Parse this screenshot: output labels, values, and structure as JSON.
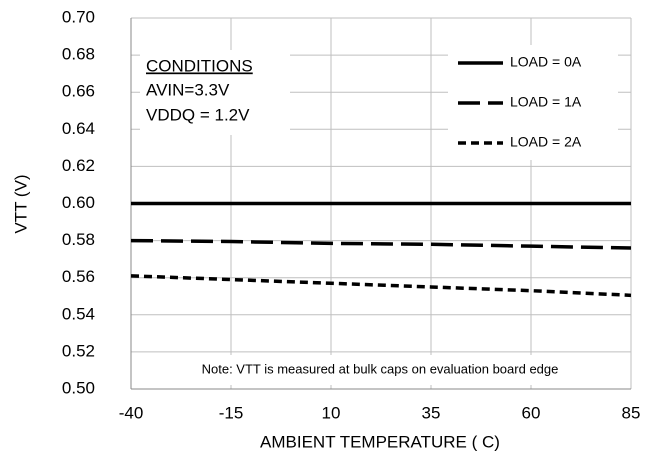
{
  "chart_data": {
    "type": "line",
    "xlabel": "AMBIENT TEMPERATURE ( C)",
    "ylabel": "VTT (V)",
    "x": [
      -40,
      -15,
      10,
      35,
      60,
      85
    ],
    "series": [
      {
        "name": "LOAD = 0A",
        "color": "#000000",
        "line_style": "solid",
        "values": [
          0.6,
          0.6,
          0.6,
          0.6,
          0.6,
          0.6
        ]
      },
      {
        "name": "LOAD = 1A",
        "color": "#000000",
        "line_style": "dashed",
        "values": [
          0.58,
          0.5795,
          0.5785,
          0.578,
          0.577,
          0.576
        ]
      },
      {
        "name": "LOAD = 2A",
        "color": "#000000",
        "line_style": "dotted",
        "values": [
          0.561,
          0.559,
          0.557,
          0.555,
          0.553,
          0.5505
        ]
      }
    ],
    "xlim": [
      -40,
      85
    ],
    "xticks": [
      -40,
      -15,
      10,
      35,
      60,
      85
    ],
    "ylim": [
      0.5,
      0.7
    ],
    "yticks": [
      {
        "value": 0.5,
        "label": "0.50"
      },
      {
        "value": 0.52,
        "label": "0.52"
      },
      {
        "value": 0.54,
        "label": "0.54"
      },
      {
        "value": 0.56,
        "label": "0.56"
      },
      {
        "value": 0.58,
        "label": "0.58"
      },
      {
        "value": 0.6,
        "label": "0.60"
      },
      {
        "value": 0.62,
        "label": "0.62"
      },
      {
        "value": 0.64,
        "label": "0.64"
      },
      {
        "value": 0.66,
        "label": "0.66"
      },
      {
        "value": 0.68,
        "label": "0.68"
      },
      {
        "value": 0.7,
        "label": "0.70"
      }
    ],
    "grid": true,
    "legend": "upper right",
    "annotations": [
      "CONDITIONS",
      "AVIN=3.3V",
      "VDDQ = 1.2V",
      "Note: VTT is measured at bulk caps on evaluation board edge"
    ]
  }
}
